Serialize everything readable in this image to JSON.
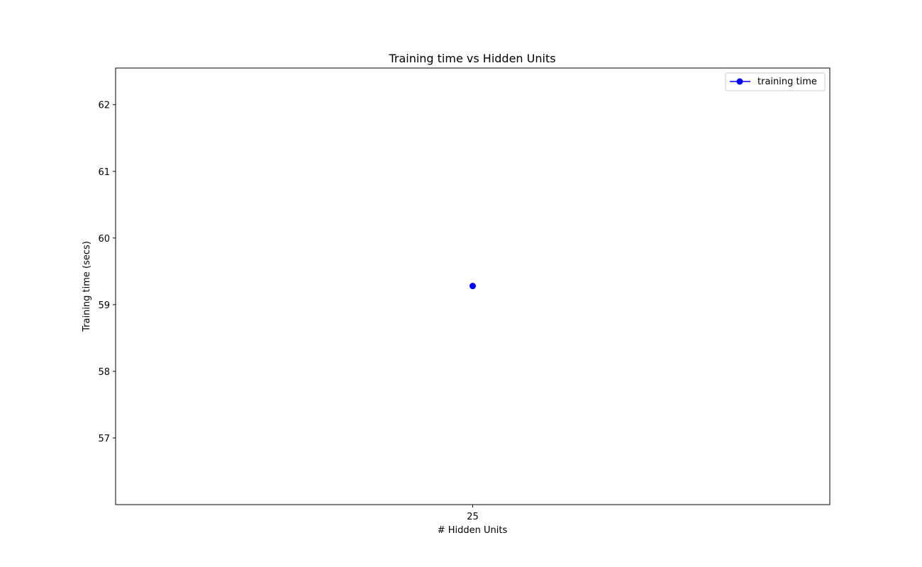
{
  "chart_data": {
    "type": "line",
    "title": "Training time vs Hidden Units",
    "xlabel": "# Hidden Units",
    "ylabel": "Training time (secs)",
    "x_categories": [
      "25"
    ],
    "series": [
      {
        "name": "training time",
        "x": [
          "25"
        ],
        "y": [
          59.28
        ],
        "color": "#0000ff",
        "marker": "circle"
      }
    ],
    "ylim": [
      56.0,
      62.55
    ],
    "yticks": [
      57,
      58,
      59,
      60,
      61,
      62
    ],
    "xticks": [
      "25"
    ],
    "grid": false,
    "legend_position": "top-right"
  }
}
